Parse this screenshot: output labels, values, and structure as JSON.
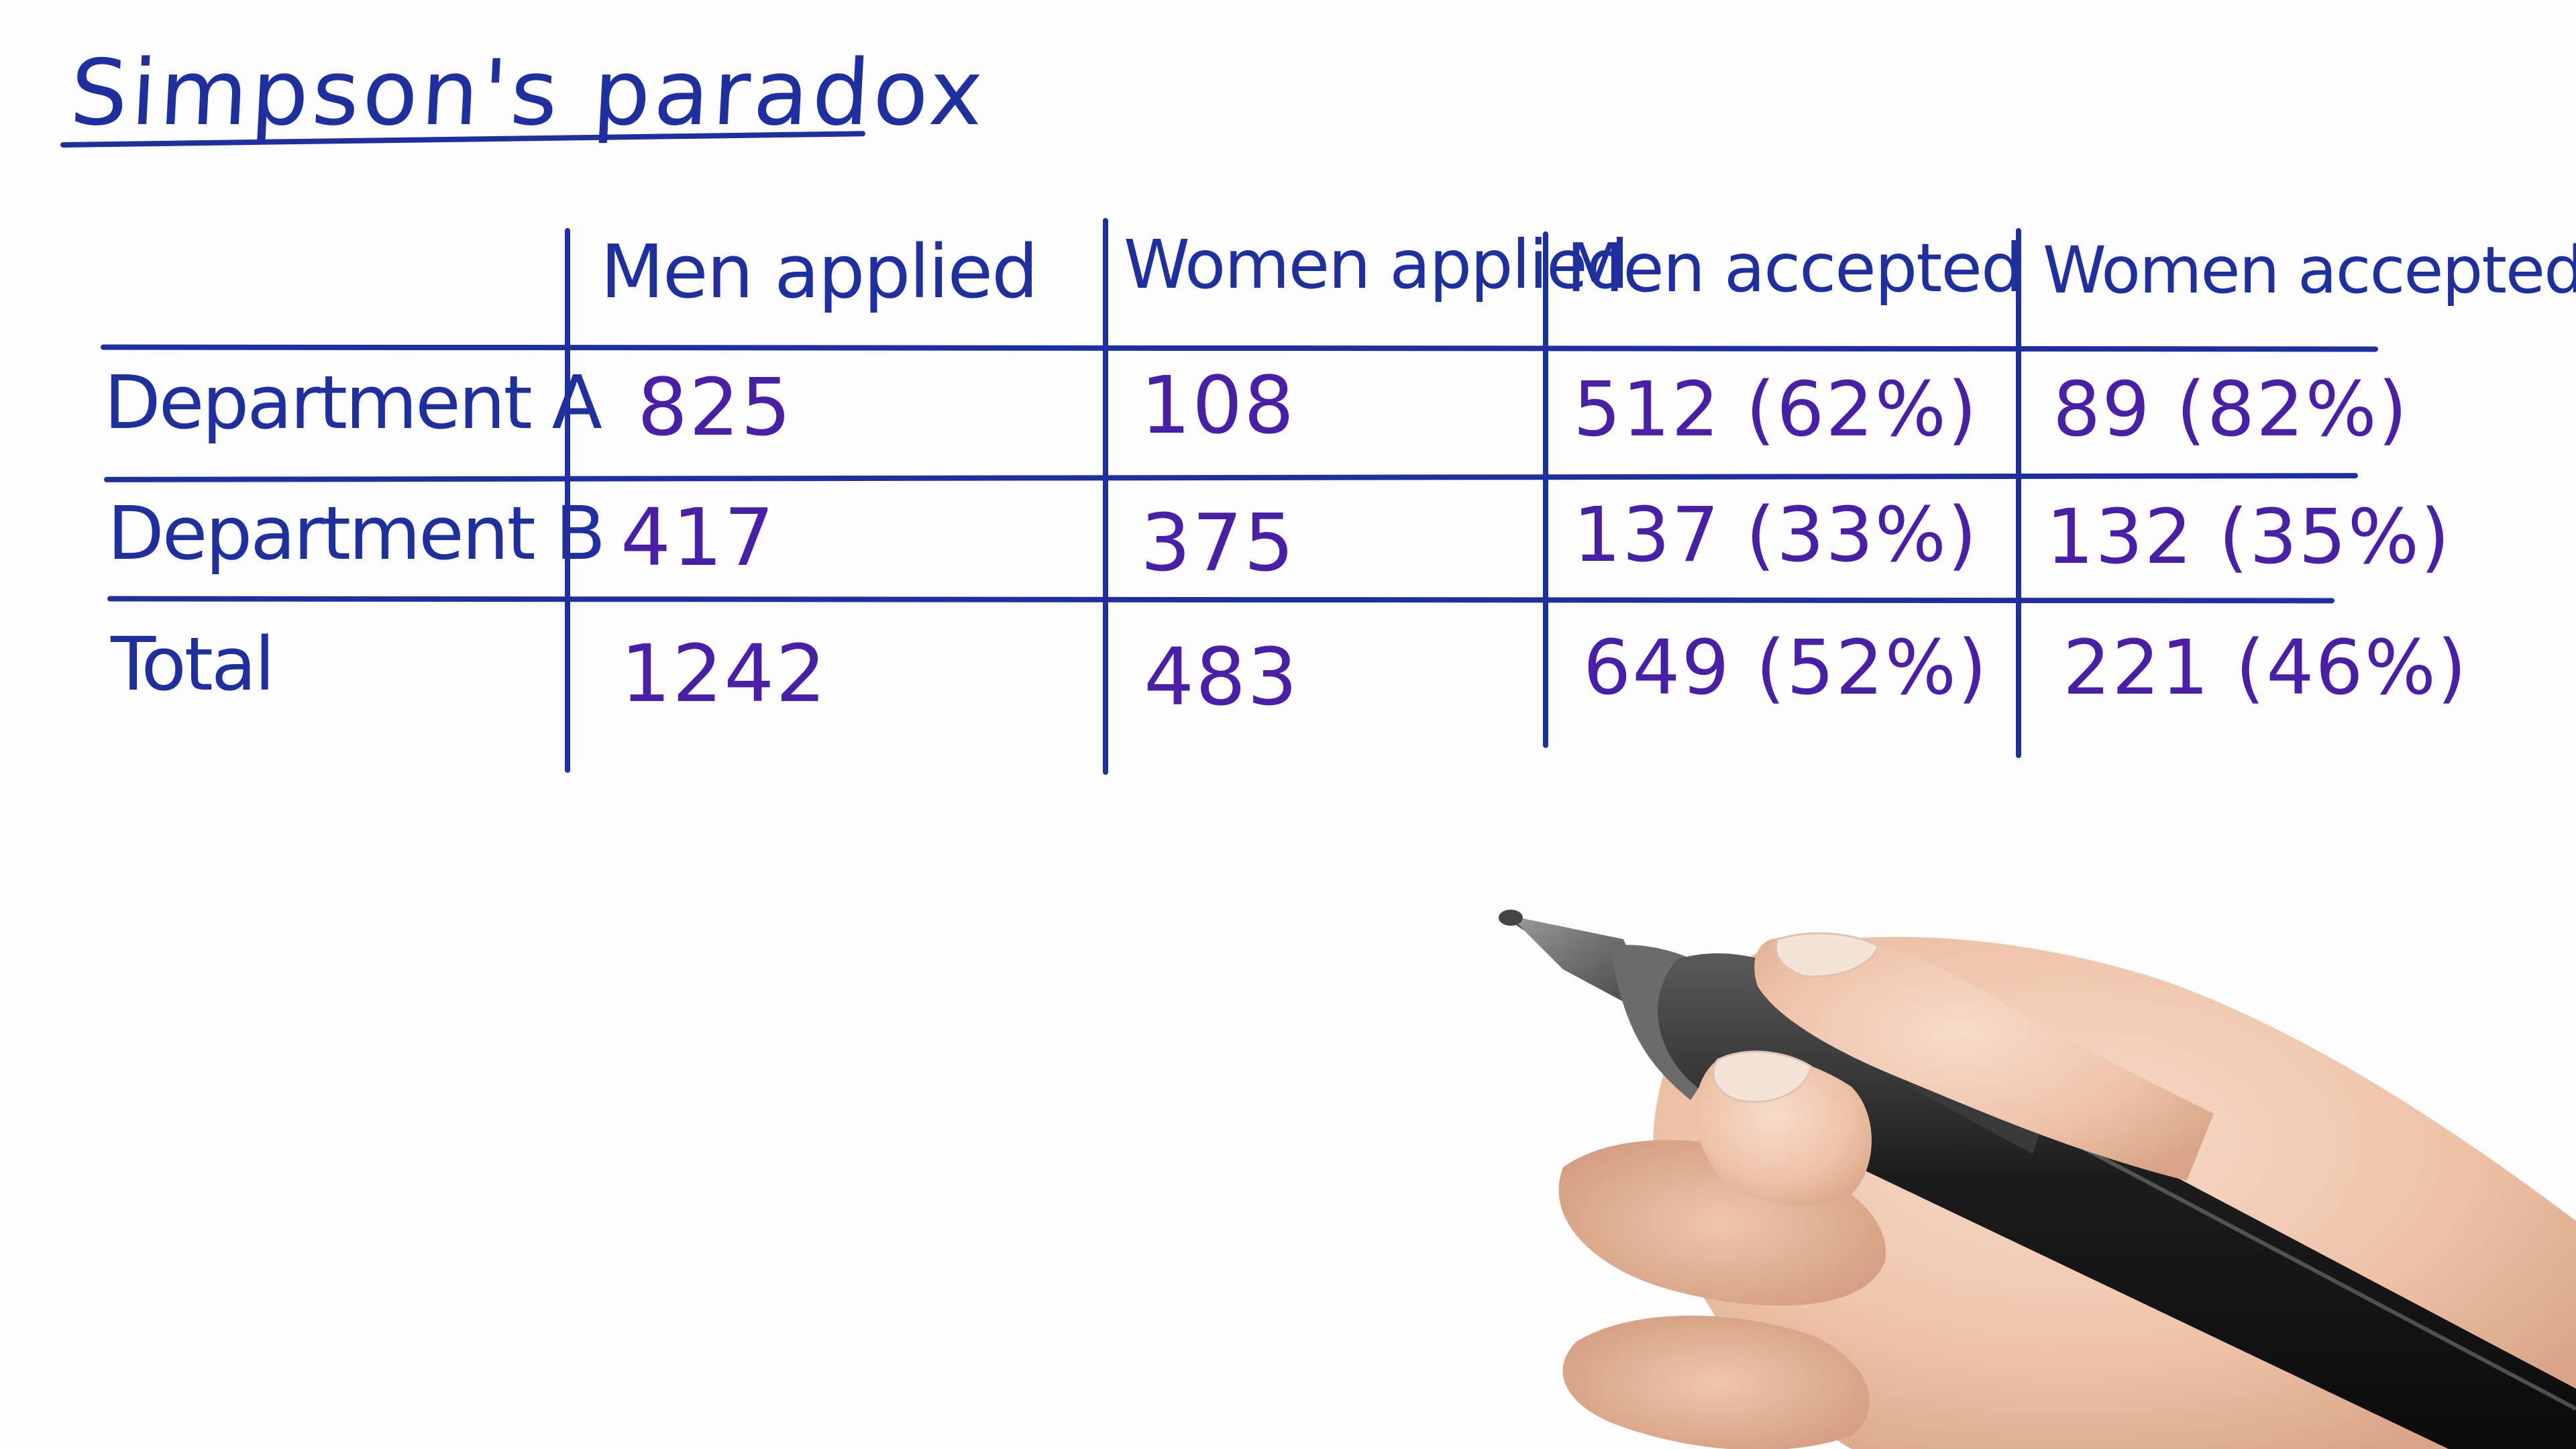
{
  "title": "Simpson's paradox",
  "table": {
    "headers": [
      "Men applied",
      "Women applied",
      "Men accepted",
      "Women accepted"
    ],
    "rows": [
      {
        "label": "Department A",
        "cells": [
          "825",
          "108",
          "512 (62%)",
          "89 (82%)"
        ]
      },
      {
        "label": "Department B",
        "cells": [
          "417",
          "375",
          "137 (33%)",
          "132 (35%)"
        ]
      },
      {
        "label": "Total",
        "cells": [
          "1242",
          "483",
          "649 (52%)",
          "221 (46%)"
        ]
      }
    ]
  },
  "colors": {
    "marker_blue": "#1e2fa0",
    "marker_purple": "#4a1fa8",
    "background": "#ffffff"
  },
  "icons": {
    "hand": "hand-holding-pen-icon"
  }
}
